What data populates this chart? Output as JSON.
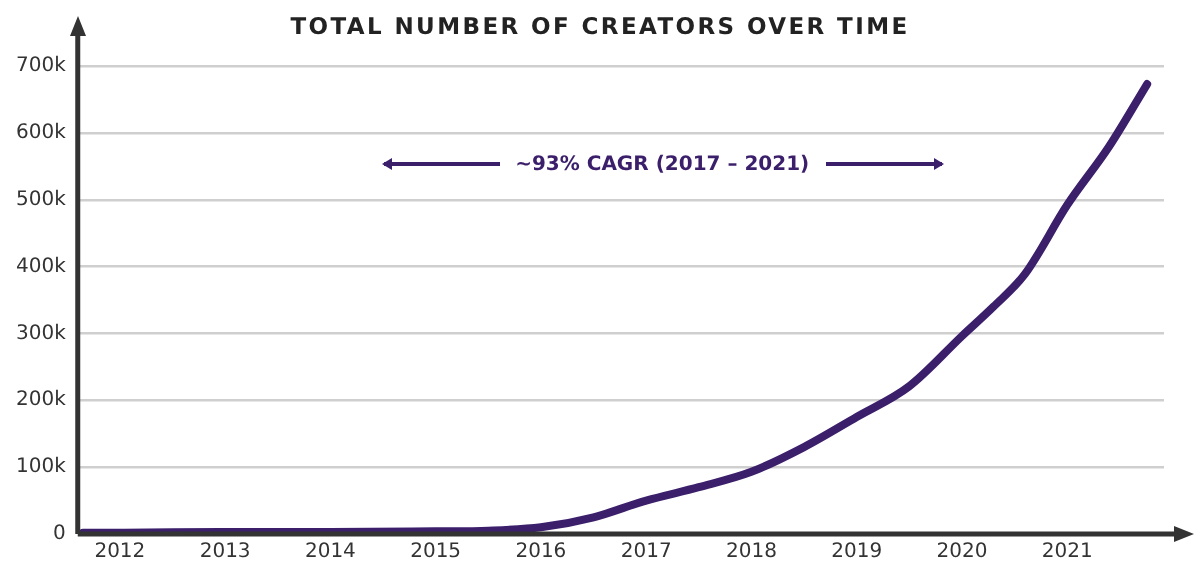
{
  "chart_data": {
    "type": "line",
    "title": "TOTAL NUMBER OF CREATORS OVER TIME",
    "x": [
      2011.65,
      2012,
      2013,
      2014,
      2015,
      2015.5,
      2016,
      2016.5,
      2017,
      2017.5,
      2018,
      2018.5,
      2019,
      2019.5,
      2020,
      2020.3,
      2020.6,
      2021,
      2021.4,
      2021.76
    ],
    "series": [
      {
        "color": "#3b1f6b",
        "values": [
          2000,
          2000,
          3000,
          3000,
          4000,
          5000,
          10000,
          25000,
          50000,
          70000,
          93000,
          130000,
          175000,
          221000,
          296000,
          340000,
          389000,
          492000,
          580000,
          673000
        ]
      }
    ],
    "xlim": [
      2011.6,
      2021.92
    ],
    "xticks": [
      2012,
      2013,
      2014,
      2015,
      2016,
      2017,
      2018,
      2019,
      2020,
      2021
    ],
    "ylim": [
      0,
      700000
    ],
    "yticks": [
      {
        "value": 0,
        "label": "0"
      },
      {
        "value": 100000,
        "label": "100k"
      },
      {
        "value": 200000,
        "label": "200k"
      },
      {
        "value": 300000,
        "label": "300k"
      },
      {
        "value": 400000,
        "label": "400k"
      },
      {
        "value": 500000,
        "label": "500k"
      },
      {
        "value": 600000,
        "label": "600k"
      },
      {
        "value": 700000,
        "label": "700k"
      }
    ],
    "grid": "y",
    "legend": false,
    "marker": "none",
    "line_style": "solid",
    "annotations": [
      "~93% CAGR (2017 – 2021)"
    ]
  }
}
